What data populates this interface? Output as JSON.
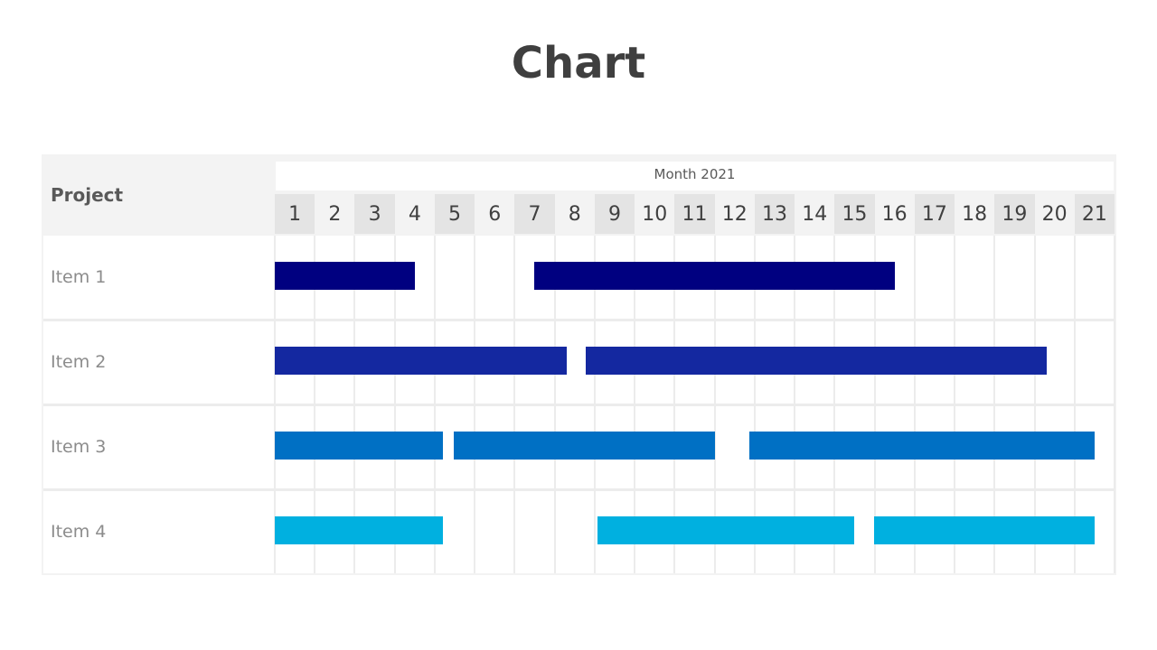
{
  "chart_data": {
    "type": "gantt",
    "title": "Chart",
    "header_label": "Project",
    "period_label": "Month 2021",
    "days": [
      "1",
      "2",
      "3",
      "4",
      "5",
      "6",
      "7",
      "8",
      "9",
      "10",
      "11",
      "12",
      "13",
      "14",
      "15",
      "16",
      "17",
      "18",
      "19",
      "20",
      "21"
    ],
    "rows": [
      {
        "label": "Item 1",
        "color": "#000080",
        "tasks": [
          {
            "start": 1,
            "end": 4.5
          },
          {
            "start": 7.5,
            "end": 16.5
          }
        ]
      },
      {
        "label": "Item 2",
        "color": "#1428A0",
        "tasks": [
          {
            "start": 1,
            "end": 8.3
          },
          {
            "start": 8.8,
            "end": 20.3
          }
        ]
      },
      {
        "label": "Item 3",
        "color": "#0070C4",
        "tasks": [
          {
            "start": 1,
            "end": 5.2
          },
          {
            "start": 5.5,
            "end": 12
          },
          {
            "start": 12.9,
            "end": 21.5
          }
        ]
      },
      {
        "label": "Item 4",
        "color": "#00B0E0",
        "tasks": [
          {
            "start": 1,
            "end": 5.2
          },
          {
            "start": 9.1,
            "end": 15.5
          },
          {
            "start": 16,
            "end": 21.5
          }
        ]
      }
    ]
  }
}
